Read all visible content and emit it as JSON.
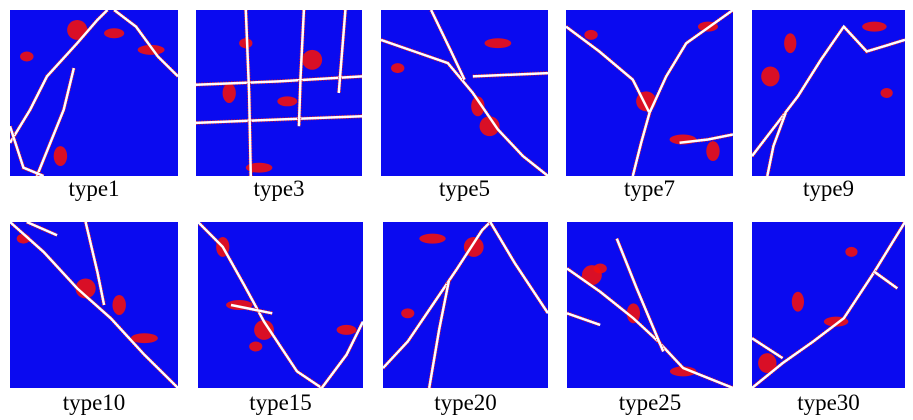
{
  "panels": [
    {
      "label": "type1"
    },
    {
      "label": "type3"
    },
    {
      "label": "type5"
    },
    {
      "label": "type7"
    },
    {
      "label": "type9"
    },
    {
      "label": "type10"
    },
    {
      "label": "type15"
    },
    {
      "label": "type20"
    },
    {
      "label": "type25"
    },
    {
      "label": "type30"
    }
  ]
}
